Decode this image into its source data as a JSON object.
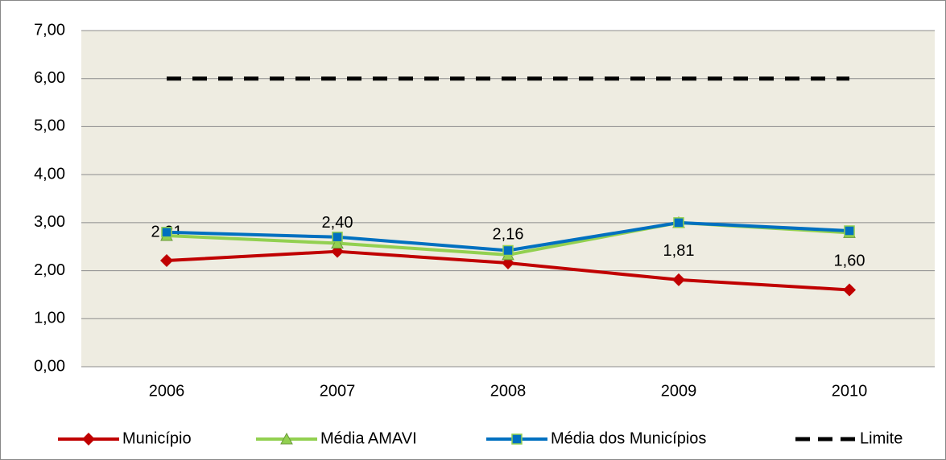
{
  "chart_data": {
    "type": "line",
    "categories": [
      "2006",
      "2007",
      "2008",
      "2009",
      "2010"
    ],
    "ylim": [
      0,
      7
    ],
    "yticks": [
      {
        "value": 0,
        "label": "0,00"
      },
      {
        "value": 1,
        "label": "1,00"
      },
      {
        "value": 2,
        "label": "2,00"
      },
      {
        "value": 3,
        "label": "3,00"
      },
      {
        "value": 4,
        "label": "4,00"
      },
      {
        "value": 5,
        "label": "5,00"
      },
      {
        "value": 6,
        "label": "6,00"
      },
      {
        "value": 7,
        "label": "7,00"
      }
    ],
    "grid": true,
    "legend": "bottom",
    "series": [
      {
        "name": "Município",
        "color": "#c00000",
        "marker": "diamond",
        "values": [
          2.21,
          2.4,
          2.16,
          1.81,
          1.6
        ],
        "value_labels": [
          "2,21",
          "2,40",
          "2,16",
          "1,81",
          "1,60"
        ]
      },
      {
        "name": "Média AMAVI",
        "color": "#92d050",
        "marker": "triangle",
        "values": [
          2.73,
          2.57,
          2.33,
          3.0,
          2.79
        ]
      },
      {
        "name": "Média dos Municípios",
        "color": "#0070c0",
        "marker": "square",
        "values": [
          2.8,
          2.7,
          2.42,
          3.0,
          2.83
        ]
      },
      {
        "name": "Limite",
        "color": "#000000",
        "dash": true,
        "values": [
          6,
          6,
          6,
          6,
          6
        ]
      }
    ]
  }
}
